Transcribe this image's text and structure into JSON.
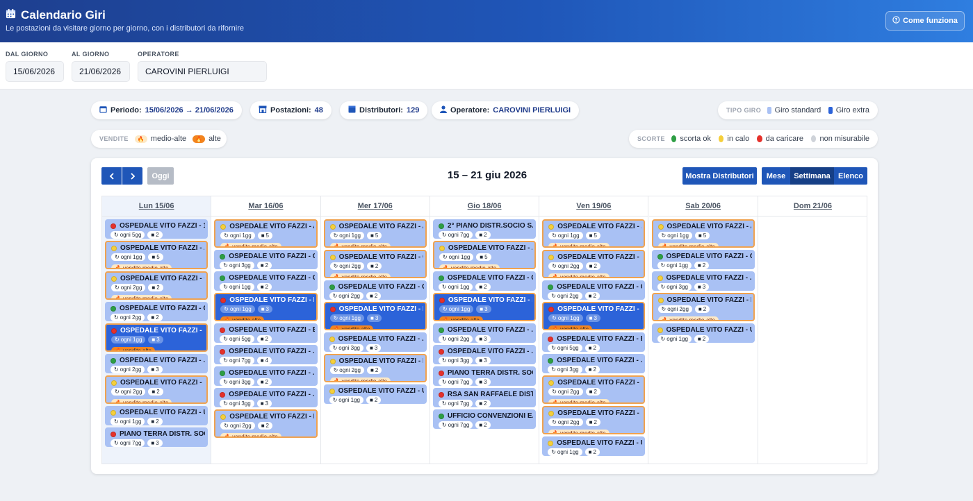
{
  "header": {
    "title": "Calendario Giri",
    "subtitle": "Le postazioni da visitare giorno per giorno, con i distributori da rifornire",
    "help_label": "Come funziona"
  },
  "filters": {
    "from_label": "DAL GIORNO",
    "from_value": "15/06/2026",
    "to_label": "AL GIORNO",
    "to_value": "21/06/2026",
    "operator_label": "OPERATORE",
    "operator_value": "CAROVINI PIERLUIGI"
  },
  "summary": {
    "period_label": "Periodo:",
    "period_value": "15/06/2026 → 21/06/2026",
    "stations_label": "Postazioni:",
    "stations_value": "48",
    "distributors_label": "Distributori:",
    "distributors_value": "129",
    "operator_label": "Operatore:",
    "operator_value": "CAROVINI PIERLUIGI"
  },
  "legend_tipo": {
    "caption": "TIPO GIRO",
    "standard": "Giro standard",
    "extra": "Giro extra",
    "standard_color": "#a9c1f4",
    "extra_color": "#2c63d9"
  },
  "legend_vendite": {
    "caption": "VENDITE",
    "medium": "medio-alte",
    "high": "alte"
  },
  "legend_scorte": {
    "caption": "SCORTE",
    "ok": "scorta ok",
    "low": "in calo",
    "reload": "da caricare",
    "unmeasurable": "non misurabile",
    "colors": {
      "ok": "#2e9e44",
      "low": "#f5cf3b",
      "reload": "#e5312b",
      "na": "#cfd3d9"
    }
  },
  "toolbar": {
    "today": "Oggi",
    "range": "15 – 21 giu 2026",
    "show_distributors": "Mostra Distributori",
    "view_month": "Mese",
    "view_week": "Settimana",
    "view_list": "Elenco"
  },
  "days": [
    {
      "label": "Lun 15/06",
      "events": [
        {
          "title": "OSPEDALE VITO FAZZI - 1...",
          "freq": "ogni 5gg",
          "count": "2",
          "status": "reload",
          "sales": ""
        },
        {
          "title": "OSPEDALE VITO FAZZI - A...",
          "freq": "ogni 1gg",
          "count": "5",
          "status": "low",
          "sales": "vendite medio-alte"
        },
        {
          "title": "OSPEDALE VITO FAZZI - C...",
          "freq": "ogni 2gg",
          "count": "2",
          "status": "low",
          "sales": "vendite medio-alte"
        },
        {
          "title": "OSPEDALE VITO FAZZI - C...",
          "freq": "ogni 2gg",
          "count": "2",
          "status": "ok",
          "sales": ""
        },
        {
          "title": "OSPEDALE VITO FAZZI - D...",
          "freq": "ogni 1gg",
          "count": "3",
          "status": "reload",
          "sales": "vendite alte",
          "extra": true
        },
        {
          "title": "OSPEDALE VITO FAZZI - ...",
          "freq": "ogni 2gg",
          "count": "3",
          "status": "ok",
          "sales": ""
        },
        {
          "title": "OSPEDALE VITO FAZZI - P...",
          "freq": "ogni 2gg",
          "count": "2",
          "status": "low",
          "sales": "vendite medio-alte"
        },
        {
          "title": "OSPEDALE VITO FAZZI - U...",
          "freq": "ogni 1gg",
          "count": "2",
          "status": "low",
          "sales": ""
        },
        {
          "title": "PIANO TERRA DISTR. SOC...",
          "freq": "ogni 7gg",
          "count": "3",
          "status": "reload",
          "sales": ""
        }
      ]
    },
    {
      "label": "Mar 16/06",
      "events": [
        {
          "title": "OSPEDALE VITO FAZZI - A...",
          "freq": "ogni 1gg",
          "count": "5",
          "status": "low",
          "sales": "vendite medio-alte"
        },
        {
          "title": "OSPEDALE VITO FAZZI - C...",
          "freq": "ogni 3gg",
          "count": "2",
          "status": "ok",
          "sales": ""
        },
        {
          "title": "OSPEDALE VITO FAZZI - C...",
          "freq": "ogni 1gg",
          "count": "2",
          "status": "ok",
          "sales": ""
        },
        {
          "title": "OSPEDALE VITO FAZZI - D...",
          "freq": "ogni 1gg",
          "count": "3",
          "status": "reload",
          "sales": "vendite alte",
          "extra": true
        },
        {
          "title": "OSPEDALE VITO FAZZI - E...",
          "freq": "ogni 5gg",
          "count": "2",
          "status": "reload",
          "sales": ""
        },
        {
          "title": "OSPEDALE VITO FAZZI - ...",
          "freq": "ogni 7gg",
          "count": "4",
          "status": "reload",
          "sales": ""
        },
        {
          "title": "OSPEDALE VITO FAZZI - ...",
          "freq": "ogni 3gg",
          "count": "2",
          "status": "ok",
          "sales": ""
        },
        {
          "title": "OSPEDALE VITO FAZZI - ...",
          "freq": "ogni 3gg",
          "count": "3",
          "status": "reload",
          "sales": ""
        },
        {
          "title": "OSPEDALE VITO FAZZI - R...",
          "freq": "ogni 2gg",
          "count": "2",
          "status": "low",
          "sales": "vendite medio-alte"
        }
      ]
    },
    {
      "label": "Mer 17/06",
      "events": [
        {
          "title": "OSPEDALE VITO FAZZI - A...",
          "freq": "ogni 1gg",
          "count": "5",
          "status": "low",
          "sales": "vendite medio-alte"
        },
        {
          "title": "OSPEDALE VITO FAZZI - C...",
          "freq": "ogni 2gg",
          "count": "2",
          "status": "low",
          "sales": "vendite medio-alte"
        },
        {
          "title": "OSPEDALE VITO FAZZI - C...",
          "freq": "ogni 2gg",
          "count": "2",
          "status": "ok",
          "sales": ""
        },
        {
          "title": "OSPEDALE VITO FAZZI - D...",
          "freq": "ogni 1gg",
          "count": "3",
          "status": "reload",
          "sales": "vendite alte",
          "extra": true
        },
        {
          "title": "OSPEDALE VITO FAZZI - ...",
          "freq": "ogni 3gg",
          "count": "3",
          "status": "low",
          "sales": ""
        },
        {
          "title": "OSPEDALE VITO FAZZI - P...",
          "freq": "ogni 2gg",
          "count": "2",
          "status": "low",
          "sales": "vendite medio-alte"
        },
        {
          "title": "OSPEDALE VITO FAZZI - U...",
          "freq": "ogni 1gg",
          "count": "2",
          "status": "low",
          "sales": ""
        }
      ]
    },
    {
      "label": "Gio 18/06",
      "events": [
        {
          "title": "2° PIANO DISTR.SOCIO S...",
          "freq": "ogni 7gg",
          "count": "2",
          "status": "ok",
          "sales": ""
        },
        {
          "title": "OSPEDALE VITO FAZZI - A...",
          "freq": "ogni 1gg",
          "count": "5",
          "status": "low",
          "sales": "vendite medio-alte"
        },
        {
          "title": "OSPEDALE VITO FAZZI - C...",
          "freq": "ogni 1gg",
          "count": "2",
          "status": "ok",
          "sales": ""
        },
        {
          "title": "OSPEDALE VITO FAZZI - D...",
          "freq": "ogni 1gg",
          "count": "3",
          "status": "reload",
          "sales": "vendite alte",
          "extra": true
        },
        {
          "title": "OSPEDALE VITO FAZZI - ...",
          "freq": "ogni 2gg",
          "count": "3",
          "status": "ok",
          "sales": ""
        },
        {
          "title": "OSPEDALE VITO FAZZI - ...",
          "freq": "ogni 3gg",
          "count": "3",
          "status": "reload",
          "sales": ""
        },
        {
          "title": "PIANO TERRA DISTR. SOC...",
          "freq": "ogni 7gg",
          "count": "3",
          "status": "reload",
          "sales": ""
        },
        {
          "title": "RSA SAN RAFFAELE DIST...",
          "freq": "ogni 7gg",
          "count": "2",
          "status": "reload",
          "sales": ""
        },
        {
          "title": "UFFICIO CONVENZIONI E...",
          "freq": "ogni 7gg",
          "count": "2",
          "status": "ok",
          "sales": ""
        }
      ]
    },
    {
      "label": "Ven 19/06",
      "events": [
        {
          "title": "OSPEDALE VITO FAZZI - A...",
          "freq": "ogni 1gg",
          "count": "5",
          "status": "low",
          "sales": "vendite medio-alte"
        },
        {
          "title": "OSPEDALE VITO FAZZI - C...",
          "freq": "ogni 2gg",
          "count": "2",
          "status": "low",
          "sales": "vendite medio-alte"
        },
        {
          "title": "OSPEDALE VITO FAZZI - C...",
          "freq": "ogni 2gg",
          "count": "2",
          "status": "ok",
          "sales": ""
        },
        {
          "title": "OSPEDALE VITO FAZZI - D...",
          "freq": "ogni 1gg",
          "count": "3",
          "status": "reload",
          "sales": "vendite alte",
          "extra": true
        },
        {
          "title": "OSPEDALE VITO FAZZI - E...",
          "freq": "ogni 5gg",
          "count": "2",
          "status": "reload",
          "sales": ""
        },
        {
          "title": "OSPEDALE VITO FAZZI - ...",
          "freq": "ogni 3gg",
          "count": "2",
          "status": "ok",
          "sales": ""
        },
        {
          "title": "OSPEDALE VITO FAZZI - P...",
          "freq": "ogni 2gg",
          "count": "2",
          "status": "low",
          "sales": "vendite medio-alte"
        },
        {
          "title": "OSPEDALE VITO FAZZI - R...",
          "freq": "ogni 2gg",
          "count": "2",
          "status": "low",
          "sales": "vendite medio-alte"
        },
        {
          "title": "OSPEDALE VITO FAZZI - U...",
          "freq": "ogni 1gg",
          "count": "2",
          "status": "low",
          "sales": ""
        }
      ]
    },
    {
      "label": "Sab 20/06",
      "events": [
        {
          "title": "OSPEDALE VITO FAZZI - A...",
          "freq": "ogni 1gg",
          "count": "5",
          "status": "low",
          "sales": "vendite medio-alte"
        },
        {
          "title": "OSPEDALE VITO FAZZI - C...",
          "freq": "ogni 1gg",
          "count": "2",
          "status": "ok",
          "sales": ""
        },
        {
          "title": "OSPEDALE VITO FAZZI - ...",
          "freq": "ogni 3gg",
          "count": "3",
          "status": "low",
          "sales": ""
        },
        {
          "title": "OSPEDALE VITO FAZZI - P...",
          "freq": "ogni 2gg",
          "count": "2",
          "status": "low",
          "sales": "vendite medio-alte"
        },
        {
          "title": "OSPEDALE VITO FAZZI - U...",
          "freq": "ogni 1gg",
          "count": "2",
          "status": "low",
          "sales": ""
        }
      ]
    },
    {
      "label": "Dom 21/06",
      "events": []
    }
  ]
}
